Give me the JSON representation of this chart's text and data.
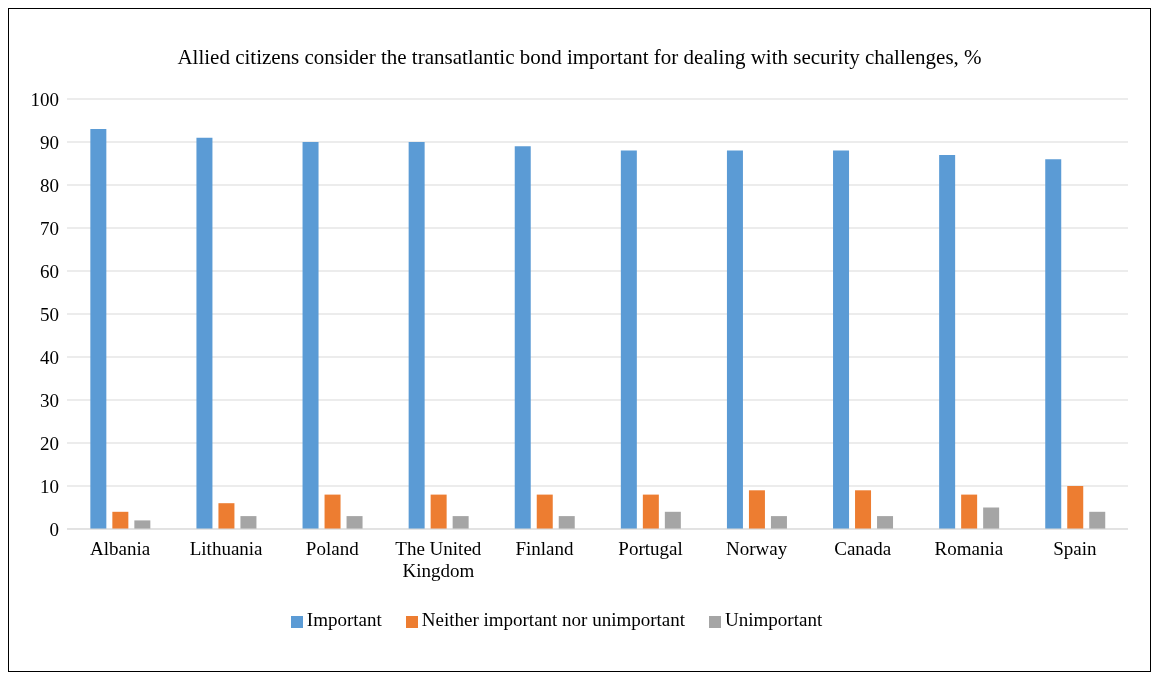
{
  "chart_data": {
    "type": "bar",
    "title": "Allied citizens consider the transatlantic bond important for dealing with security challenges, %",
    "categories": [
      "Albania",
      "Lithuania",
      "Poland",
      "The United Kingdom",
      "Finland",
      "Portugal",
      "Norway",
      "Canada",
      "Romania",
      "Spain"
    ],
    "series": [
      {
        "name": "Important",
        "color": "#5b9bd5",
        "values": [
          93,
          91,
          90,
          90,
          89,
          88,
          88,
          88,
          87,
          86
        ]
      },
      {
        "name": "Neither important nor unimportant",
        "color": "#ed7d31",
        "values": [
          4,
          6,
          8,
          8,
          8,
          8,
          9,
          9,
          8,
          10
        ]
      },
      {
        "name": "Unimportant",
        "color": "#a5a5a5",
        "values": [
          2,
          3,
          3,
          3,
          3,
          4,
          3,
          3,
          5,
          4
        ]
      }
    ],
    "ylim": [
      0,
      100
    ],
    "yticks": [
      0,
      10,
      20,
      30,
      40,
      50,
      60,
      70,
      80,
      90,
      100
    ],
    "grid": "y",
    "legend": "bottom"
  }
}
